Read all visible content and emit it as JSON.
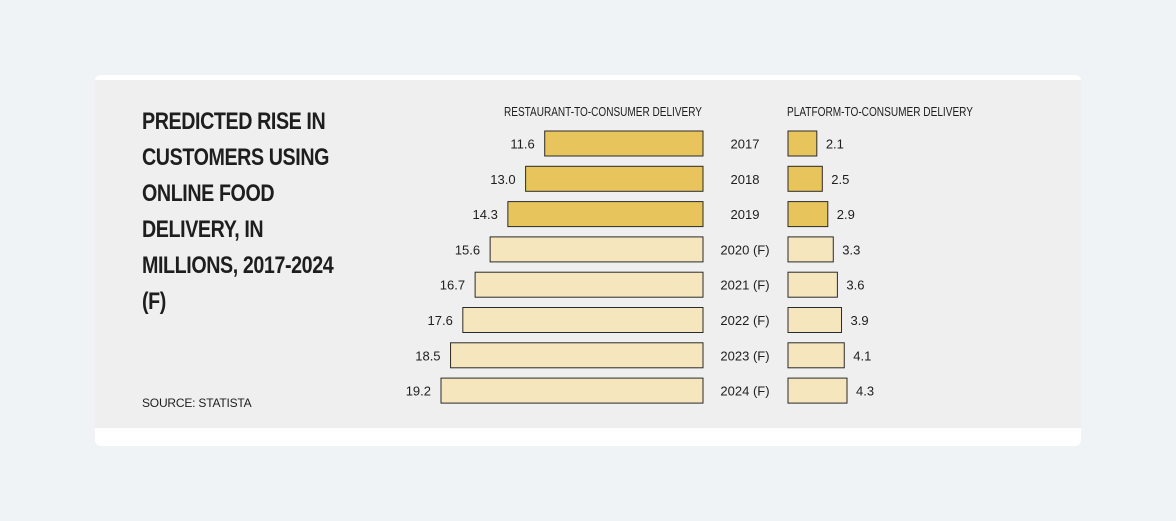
{
  "chart_data": {
    "type": "bar",
    "title": "PREDICTED RISE IN CUSTOMERS USING ONLINE FOOD DELIVERY, IN MILLIONS, 2017-2024 (F)",
    "source": "SOURCE: STATISTA",
    "categories": [
      "2017",
      "2018",
      "2019",
      "2020 (F)",
      "2021 (F)",
      "2022 (F)",
      "2023 (F)",
      "2024 (F)"
    ],
    "series": [
      {
        "name": "RESTAURANT-TO-CONSUMER DELIVERY",
        "values": [
          11.6,
          13.0,
          14.3,
          15.6,
          16.7,
          17.6,
          18.5,
          19.2
        ],
        "labels": [
          "11.6",
          "13.0",
          "14.3",
          "15.6",
          "16.7",
          "17.6",
          "18.5",
          "19.2"
        ],
        "direction": "left"
      },
      {
        "name": "PLATFORM-TO-CONSUMER DELIVERY",
        "values": [
          2.1,
          2.5,
          2.9,
          3.3,
          3.6,
          3.9,
          4.1,
          4.3
        ],
        "labels": [
          "2.1",
          "2.5",
          "2.9",
          "3.3",
          "3.6",
          "3.9",
          "4.1",
          "4.3"
        ],
        "direction": "right"
      }
    ],
    "colors": {
      "actual": "#e8c55c",
      "forecast": "#f5e6bd",
      "stroke": "#2a2a2a"
    },
    "actual_count": 3,
    "legend": "none",
    "grid": false
  }
}
